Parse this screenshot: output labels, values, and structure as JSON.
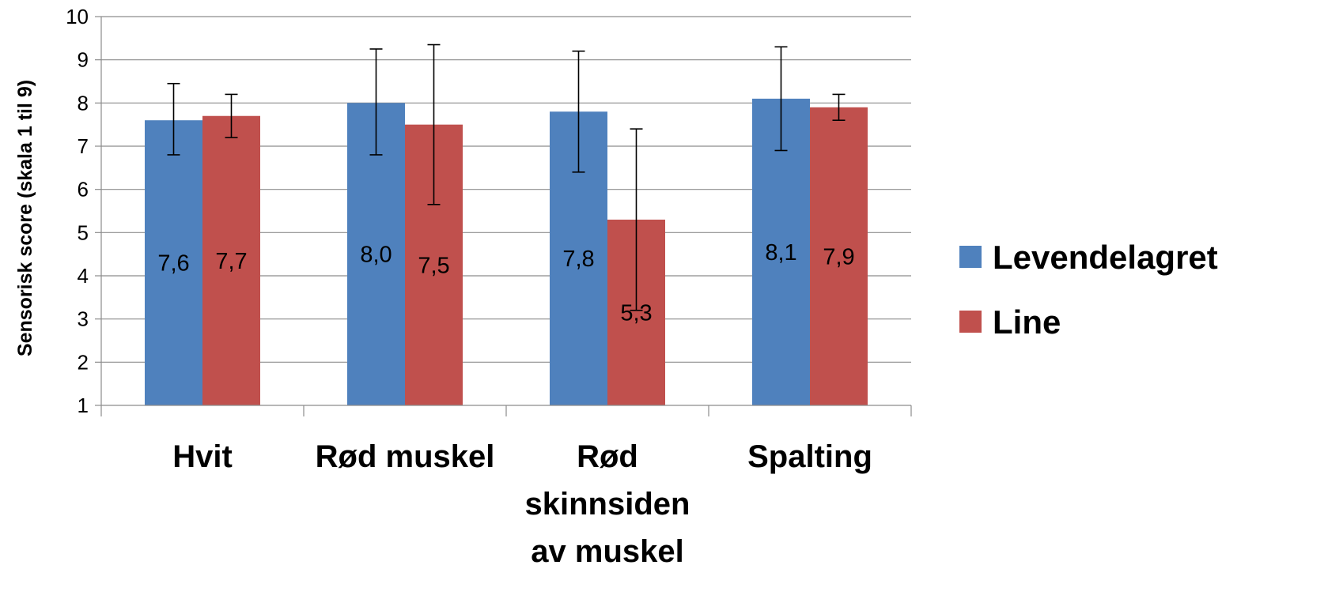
{
  "chart_data": {
    "type": "bar",
    "ylabel": "Sensorisk score (skala 1 til 9)",
    "ylim": [
      1,
      10
    ],
    "yticks": [
      1,
      2,
      3,
      4,
      5,
      6,
      7,
      8,
      9,
      10
    ],
    "grid": true,
    "legend_position": "right",
    "categories": [
      [
        "Hvit"
      ],
      [
        "Rød muskel"
      ],
      [
        "Rød",
        "skinnsiden",
        "av muskel"
      ],
      [
        "Spalting"
      ]
    ],
    "series": [
      {
        "name": "Levendelagret",
        "color": "#4F81BD",
        "values": [
          7.6,
          8.0,
          7.8,
          8.1
        ],
        "labels": [
          "7,6",
          "8,0",
          "7,8",
          "8,1"
        ],
        "error_low": [
          6.8,
          6.8,
          6.4,
          6.9
        ],
        "error_high": [
          8.45,
          9.25,
          9.2,
          9.3
        ]
      },
      {
        "name": "Line",
        "color": "#C0504D",
        "values": [
          7.7,
          7.5,
          5.3,
          7.9
        ],
        "labels": [
          "7,7",
          "7,5",
          "5,3",
          "7,9"
        ],
        "error_low": [
          7.2,
          5.65,
          3.2,
          7.6
        ],
        "error_high": [
          8.2,
          9.35,
          7.4,
          8.2
        ]
      }
    ]
  }
}
